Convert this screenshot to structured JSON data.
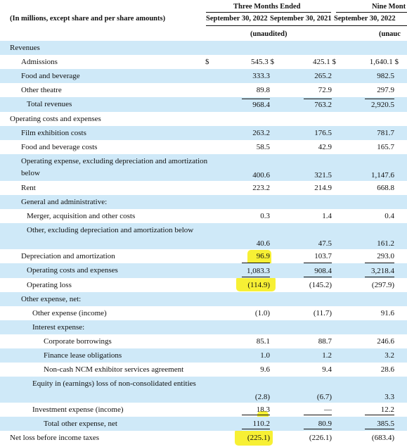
{
  "header": {
    "units_note": "(In millions, except share and per share amounts)",
    "group_three_months": "Three Months Ended",
    "group_nine_months": "Nine Mont",
    "col_2022": "September 30, 2022",
    "col_2021": "September 30, 2021",
    "col_nine_2022": "September 30, 2022",
    "unaudited_label": "(unaudited)",
    "unaudited_cut": "(unauc"
  },
  "rows": [
    {
      "label": "Revenues",
      "indent": 0,
      "shaded": true
    },
    {
      "label": "Admissions",
      "indent": 1,
      "dollar": "$",
      "v1": "545.3 $",
      "v2": "425.1 $",
      "v3": "1,640.1 $"
    },
    {
      "label": "Food and beverage",
      "indent": 1,
      "shaded": true,
      "v1": "333.3",
      "v2": "265.2",
      "v3": "982.5"
    },
    {
      "label": "Other theatre",
      "indent": 1,
      "v1": "89.8",
      "v2": "72.9",
      "v3": "297.9"
    },
    {
      "label": "Total revenues",
      "indent": 2,
      "shaded": true,
      "v1": "968.4",
      "v2": "763.2",
      "v3": "2,920.5"
    },
    {
      "label": "Operating costs and expenses",
      "indent": 0
    },
    {
      "label": "Film exhibition costs",
      "indent": 1,
      "shaded": true,
      "v1": "263.2",
      "v2": "176.5",
      "v3": "781.7"
    },
    {
      "label": "Food and beverage costs",
      "indent": 1,
      "v1": "58.5",
      "v2": "42.9",
      "v3": "165.7"
    },
    {
      "label": "Operating expense, excluding depreciation and amortization below",
      "indent": 1,
      "shaded": true,
      "v1": "400.6",
      "v2": "321.5",
      "v3": "1,147.6"
    },
    {
      "label": "Rent",
      "indent": 1,
      "v1": "223.2",
      "v2": "214.9",
      "v3": "668.8"
    },
    {
      "label": "General and administrative:",
      "indent": 1,
      "shaded": true
    },
    {
      "label": "Merger, acquisition and other costs",
      "indent": 2,
      "v1": "0.3",
      "v2": "1.4",
      "v3": "0.4"
    },
    {
      "label": "Other, excluding depreciation and amortization below",
      "indent": 2,
      "shaded": true,
      "v1": "40.6",
      "v2": "47.5",
      "v3": "161.2"
    },
    {
      "label": "Depreciation and amortization",
      "indent": 1,
      "v1": "96.9",
      "v2": "103.7",
      "v3": "293.0"
    },
    {
      "label": "Operating costs and expenses",
      "indent": 2,
      "shaded": true,
      "v1": "1,083.3",
      "v2": "908.4",
      "v3": "3,218.4"
    },
    {
      "label": "Operating loss",
      "indent": 2,
      "v1": "(114.9)",
      "v2": "(145.2)",
      "v3": "(297.9)"
    },
    {
      "label": "Other expense, net:",
      "indent": 1,
      "shaded": true
    },
    {
      "label": "Other expense (income)",
      "indent": 3,
      "v1": "(1.0)",
      "v2": "(11.7)",
      "v3": "91.6"
    },
    {
      "label": "Interest expense:",
      "indent": 3,
      "shaded": true
    },
    {
      "label": "Corporate borrowings",
      "indent": 4,
      "v1": "85.1",
      "v2": "88.7",
      "v3": "246.6"
    },
    {
      "label": "Finance lease obligations",
      "indent": 4,
      "shaded": true,
      "v1": "1.0",
      "v2": "1.2",
      "v3": "3.2"
    },
    {
      "label": "Non-cash NCM exhibitor services agreement",
      "indent": 4,
      "v1": "9.6",
      "v2": "9.4",
      "v3": "28.6"
    },
    {
      "label": "Equity in (earnings) loss of non-consolidated entities",
      "indent": 3,
      "shaded": true,
      "v1": "(2.8)",
      "v2": "(6.7)",
      "v3": "3.3"
    },
    {
      "label": "Investment expense (income)",
      "indent": 3,
      "v1": "18.3",
      "v2": "—",
      "v3": "12.2"
    },
    {
      "label": "Total other expense, net",
      "indent": 4,
      "shaded": true,
      "v1": "110.2",
      "v2": "80.9",
      "v3": "385.5"
    },
    {
      "label": "Net loss before income taxes",
      "indent": 0,
      "v1": "(225.1)",
      "v2": "(226.1)",
      "v3": "(683.4)"
    }
  ],
  "highlighted_values": [
    "96.9",
    "(114.9)",
    "110.2",
    "(225.1)"
  ],
  "colors": {
    "row_shade": "#cfe9f8",
    "highlight": "#f7f034"
  }
}
